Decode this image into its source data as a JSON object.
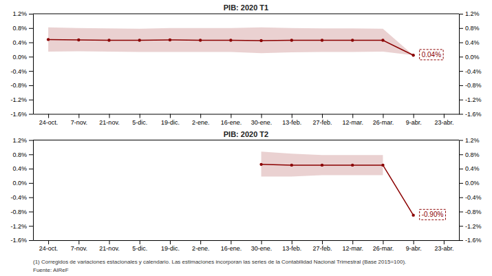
{
  "chart_data": [
    {
      "type": "line",
      "title": "PIB: 2020 T1",
      "categories": [
        "24-oct.",
        "7-nov.",
        "21-nov.",
        "5-dic.",
        "19-dic.",
        "2-ene.",
        "16-ene.",
        "30-ene.",
        "13-feb.",
        "27-feb.",
        "12-mar.",
        "26-mar.",
        "9-abr.",
        "23-abr."
      ],
      "series": [
        {
          "color": "#8B0000",
          "marker": "circle",
          "line_style": "solid",
          "values": [
            0.48,
            0.47,
            0.46,
            0.46,
            0.47,
            0.46,
            0.46,
            0.45,
            0.46,
            0.46,
            0.46,
            0.46,
            0.04,
            null
          ],
          "upper": [
            0.82,
            0.8,
            0.79,
            0.78,
            0.8,
            0.8,
            0.8,
            0.82,
            0.8,
            0.79,
            0.79,
            0.78,
            0.04,
            null
          ],
          "lower": [
            0.14,
            0.15,
            0.14,
            0.13,
            0.13,
            0.13,
            0.13,
            0.1,
            0.12,
            0.13,
            0.13,
            0.14,
            0.04,
            null
          ]
        }
      ],
      "ylim": [
        -1.6,
        1.2
      ],
      "yticks": [
        {
          "value": -1.6,
          "label": "-1.6%"
        },
        {
          "value": -1.2,
          "label": "-1.2%"
        },
        {
          "value": -0.8,
          "label": "-0.8%"
        },
        {
          "value": -0.4,
          "label": "-0.4%"
        },
        {
          "value": 0.0,
          "label": "0.0%"
        },
        {
          "value": 0.4,
          "label": "0.4%"
        },
        {
          "value": 0.8,
          "label": "0.8%"
        },
        {
          "value": 1.2,
          "label": "1.2%"
        }
      ],
      "grid": false,
      "annotations": [
        {
          "text": "0.04%",
          "category": "9-abr.",
          "y": 0.04
        }
      ]
    },
    {
      "type": "line",
      "title": "PIB: 2020 T2",
      "categories": [
        "24-oct.",
        "7-nov.",
        "21-nov.",
        "5-dic.",
        "19-dic.",
        "2-ene.",
        "16-ene.",
        "30-ene.",
        "13-feb.",
        "27-feb.",
        "12-mar.",
        "26-mar.",
        "9-abr.",
        "23-abr."
      ],
      "series": [
        {
          "color": "#8B0000",
          "marker": "circle",
          "line_style": "solid",
          "values": [
            null,
            null,
            null,
            null,
            null,
            null,
            null,
            0.52,
            0.5,
            0.5,
            0.5,
            0.5,
            -0.9,
            null
          ],
          "upper": [
            null,
            null,
            null,
            null,
            null,
            null,
            null,
            0.88,
            0.82,
            0.78,
            0.78,
            0.78,
            null,
            null
          ],
          "lower": [
            null,
            null,
            null,
            null,
            null,
            null,
            null,
            0.18,
            0.18,
            0.22,
            0.22,
            0.22,
            null,
            null
          ]
        }
      ],
      "ylim": [
        -1.6,
        1.2
      ],
      "yticks": [
        {
          "value": -1.6,
          "label": "-1.6%"
        },
        {
          "value": -1.2,
          "label": "-1.2%"
        },
        {
          "value": -0.8,
          "label": "-0.8%"
        },
        {
          "value": -0.4,
          "label": "-0.4%"
        },
        {
          "value": 0.0,
          "label": "0.0%"
        },
        {
          "value": 0.4,
          "label": "0.4%"
        },
        {
          "value": 0.8,
          "label": "0.8%"
        },
        {
          "value": 1.2,
          "label": "1.2%"
        }
      ],
      "grid": false,
      "annotations": [
        {
          "text": "-0.90%",
          "category": "9-abr.",
          "y": -0.9
        }
      ]
    }
  ],
  "footnote": "(1) Corregidos de variaciones estacionales y calendario. Las estimaciones incorporan las series de la Contabilidad Nacional Trimestral (Base 2015=100).",
  "source": "Fuente: AIReF"
}
